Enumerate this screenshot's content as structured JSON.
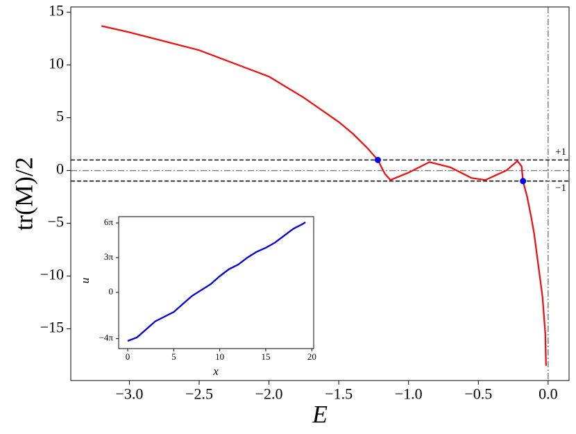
{
  "chart_data": [
    {
      "type": "line",
      "x_label": "E",
      "y_label": "tr(M)/2",
      "xlim": [
        -3.42,
        0.15
      ],
      "ylim": [
        -19.9,
        15.5
      ],
      "xticks": [
        {
          "value": -3,
          "label": "−3.0"
        },
        {
          "value": -2.5,
          "label": "−2.5"
        },
        {
          "value": -2,
          "label": "−2.0"
        },
        {
          "value": -1.5,
          "label": "−1.5"
        },
        {
          "value": -1,
          "label": "−1.0"
        },
        {
          "value": -0.5,
          "label": "−0.5"
        },
        {
          "value": 0,
          "label": "0.0"
        }
      ],
      "yticks": [
        15,
        10,
        5,
        0,
        {
          "value": -5,
          "label": "−5"
        },
        {
          "value": -10,
          "label": "−10"
        },
        {
          "value": -15,
          "label": "−15"
        }
      ],
      "x": [
        -3.2,
        -3.0,
        -2.5,
        -2.0,
        -1.75,
        -1.5,
        -1.4,
        -1.3,
        -1.22,
        -1.17,
        -1.13,
        -1.0,
        -0.85,
        -0.7,
        -0.55,
        -0.45,
        -0.3,
        -0.22,
        -0.19,
        -0.18,
        -0.15,
        -0.12,
        -0.1,
        -0.07,
        -0.04,
        -0.02,
        -0.015
      ],
      "series": [
        {
          "color": "#ee1111",
          "values": [
            13.7,
            13.1,
            11.4,
            8.9,
            6.9,
            4.6,
            3.5,
            2.2,
            1.0,
            -0.3,
            -0.9,
            -0.2,
            0.8,
            0.3,
            -0.7,
            -0.9,
            0.0,
            0.9,
            0.4,
            -1.0,
            -2.5,
            -4.5,
            -6.0,
            -9.0,
            -12.0,
            -15.5,
            -18.5
          ]
        }
      ],
      "points": {
        "color": "#0000ff",
        "x": [
          -1.22,
          -0.18
        ],
        "y": [
          1,
          -1
        ]
      },
      "reference_lines": [
        {
          "axis": "y",
          "value": 1,
          "color": "#000000",
          "dash": "dashed",
          "label": "+1"
        },
        {
          "axis": "y",
          "value": -1,
          "color": "#000000",
          "dash": "dashed",
          "label": "−1"
        },
        {
          "axis": "y",
          "value": 0,
          "color": "#808080",
          "dash": "dashdot"
        },
        {
          "axis": "x",
          "value": 0,
          "color": "#808080",
          "dash": "dashdot"
        }
      ]
    },
    {
      "type": "line",
      "x_label": "x",
      "y_label": "u",
      "xlim": [
        -0.98,
        20.2
      ],
      "ylim": [
        -4.86,
        6.54
      ],
      "xticks": [
        0,
        5,
        10,
        15,
        20
      ],
      "yticks": [
        {
          "value": -4,
          "label": "−4π"
        },
        0,
        {
          "value": 3,
          "label": "3π"
        },
        {
          "value": 6,
          "label": "6π"
        }
      ],
      "x": [
        0,
        1,
        2,
        3,
        4,
        5,
        6,
        7,
        8,
        9,
        10,
        11,
        12,
        13,
        14,
        15,
        16,
        17,
        18,
        19,
        19.3
      ],
      "series": [
        {
          "color": "#0000dd",
          "values": [
            -4.2,
            -3.9,
            -3.2,
            -2.5,
            -2.1,
            -1.7,
            -1.0,
            -0.3,
            0.2,
            0.7,
            1.4,
            2.0,
            2.4,
            3.0,
            3.5,
            3.85,
            4.3,
            4.9,
            5.5,
            5.9,
            6.06
          ]
        }
      ]
    }
  ]
}
